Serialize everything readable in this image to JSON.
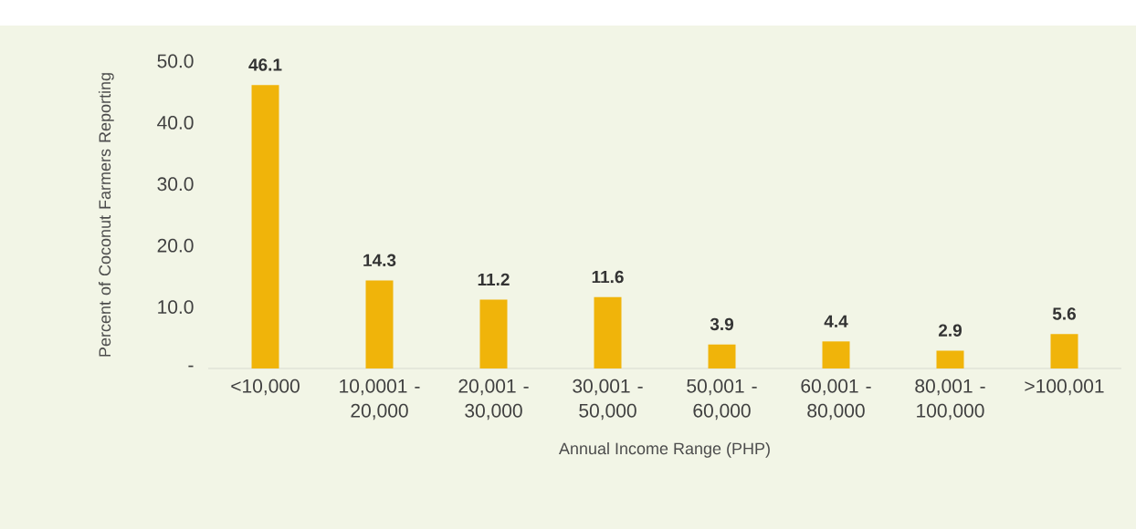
{
  "chart_data": {
    "type": "bar",
    "xlabel": "Annual Income Range (PHP)",
    "ylabel": "Percent of Coconut Farmers Reporting",
    "categories": [
      "<10,000",
      "10,0001 - 20,000",
      "20,001 - 30,000",
      "30,001 - 50,000",
      "50,001 - 60,000",
      "60,001 - 80,000",
      "80,001 - 100,000",
      ">100,001"
    ],
    "values": [
      46.1,
      14.3,
      11.2,
      11.6,
      3.9,
      4.4,
      2.9,
      5.6
    ],
    "color": "#f0b40a",
    "ylim": [
      0,
      50
    ],
    "yticks": [
      {
        "value": 0,
        "label": "-"
      },
      {
        "value": 10,
        "label": "10.0"
      },
      {
        "value": 20,
        "label": "20.0"
      },
      {
        "value": 30,
        "label": "30.0"
      },
      {
        "value": 40,
        "label": "40.0"
      },
      {
        "value": 50,
        "label": "50.0"
      }
    ],
    "data_labels": true
  }
}
